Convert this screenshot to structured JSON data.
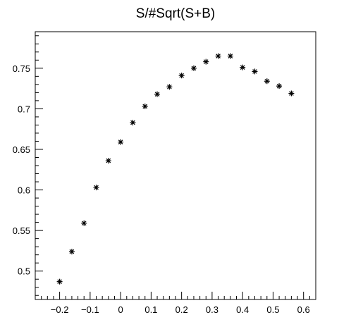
{
  "chart_data": {
    "type": "scatter",
    "title": "S/#Sqrt(S+B)",
    "xlabel": "",
    "ylabel": "",
    "xlim": [
      -0.28,
      0.64
    ],
    "ylim": [
      0.465,
      0.795
    ],
    "x_ticks": [
      -0.2,
      -0.1,
      0,
      0.1,
      0.2,
      0.3,
      0.4,
      0.5,
      0.6
    ],
    "x_tick_labels": [
      "−0.2",
      "−0.1",
      "0",
      "0.1",
      "0.2",
      "0.3",
      "0.4",
      "0.5",
      "0.6"
    ],
    "y_ticks": [
      0.5,
      0.55,
      0.6,
      0.65,
      0.7,
      0.75
    ],
    "y_tick_labels": [
      "0.5",
      "0.55",
      "0.6",
      "0.65",
      "0.7",
      "0.75"
    ],
    "marker": "*",
    "series": [
      {
        "x": [
          -0.2,
          -0.16,
          -0.12,
          -0.08,
          -0.04,
          0.0,
          0.04,
          0.08,
          0.12,
          0.16,
          0.2,
          0.24,
          0.28,
          0.32,
          0.36,
          0.4,
          0.44,
          0.48,
          0.52,
          0.56
        ],
        "y": [
          0.487,
          0.524,
          0.559,
          0.603,
          0.636,
          0.659,
          0.683,
          0.703,
          0.718,
          0.727,
          0.741,
          0.75,
          0.758,
          0.765,
          0.765,
          0.751,
          0.746,
          0.734,
          0.728,
          0.719
        ]
      }
    ]
  }
}
